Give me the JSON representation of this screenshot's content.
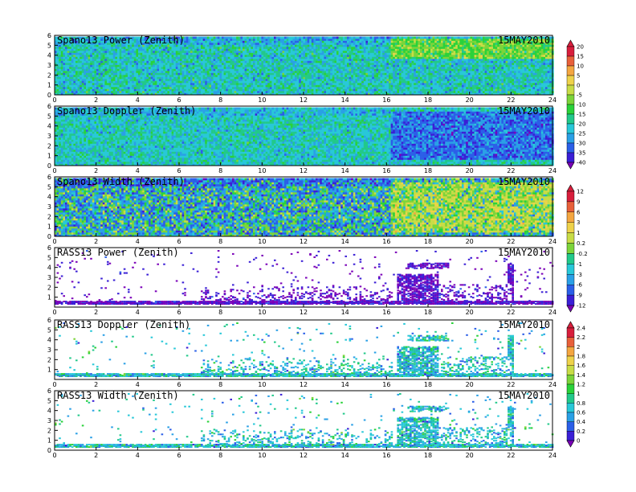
{
  "figure": {
    "x_ticks": [
      "0",
      "2",
      "4",
      "6",
      "8",
      "10",
      "12",
      "14",
      "16",
      "18",
      "20",
      "22",
      "24"
    ]
  },
  "chart_data": [
    {
      "type": "heatmap",
      "title": "Spano13 Power (Zenith)",
      "date": "15MAY2010",
      "xlim": [
        0,
        24
      ],
      "ylim": [
        0,
        6
      ],
      "y_ticks": [
        "0",
        "1",
        "2",
        "3",
        "4",
        "5",
        "6"
      ],
      "colorbar": "A",
      "kind": "full",
      "mean": -16,
      "upper_mean": -4,
      "upper_band": [
        3.8,
        5.8
      ],
      "noise": 7
    },
    {
      "type": "heatmap",
      "title": "Spano13 Doppler (Zenith)",
      "date": "15MAY2010",
      "xlim": [
        0,
        24
      ],
      "ylim": [
        0,
        6
      ],
      "y_ticks": [
        "0",
        "1",
        "2",
        "3",
        "4",
        "5",
        "6"
      ],
      "colorbar": "A",
      "kind": "full",
      "mean": -16,
      "upper_mean": -26,
      "upper_band": [
        0.8,
        5.5
      ],
      "noise": 6
    },
    {
      "type": "heatmap",
      "title": "Spano13 Width (Zenith)",
      "date": "15MAY2010",
      "xlim": [
        0,
        24
      ],
      "ylim": [
        0,
        6
      ],
      "y_ticks": [
        "0",
        "1",
        "2",
        "3",
        "4",
        "5",
        "6"
      ],
      "colorbar": "B",
      "kind": "full",
      "mean": -1,
      "upper_mean": 3,
      "upper_band": [
        0.5,
        5.5
      ],
      "noise": 4
    },
    {
      "type": "heatmap",
      "title": "RASS13 Power (Zenith)",
      "date": "15MAY2010",
      "xlim": [
        0,
        24
      ],
      "ylim": [
        0,
        6
      ],
      "y_ticks": [
        "1",
        "2",
        "3",
        "4",
        "5",
        "6"
      ],
      "colorbar": "B",
      "kind": "sparse",
      "mean": -9,
      "noise": 2.5
    },
    {
      "type": "heatmap",
      "title": "RASS13 Doppler (Zenith)",
      "date": "15MAY2010",
      "xlim": [
        0,
        24
      ],
      "ylim": [
        0,
        6
      ],
      "y_ticks": [
        "1",
        "2",
        "3",
        "4",
        "5",
        "6"
      ],
      "colorbar": "C",
      "kind": "sparse",
      "mean": 0.9,
      "noise": 0.35
    },
    {
      "type": "heatmap",
      "title": "RASS13 Width (Zenith)",
      "date": "15MAY2010",
      "xlim": [
        0,
        24
      ],
      "ylim": [
        0,
        6
      ],
      "y_ticks": [
        "0",
        "1",
        "2",
        "3",
        "4",
        "5",
        "6"
      ],
      "colorbar": "C",
      "kind": "sparse",
      "mean": 0.9,
      "noise": 0.35
    }
  ],
  "colorbars": {
    "A": {
      "labels": [
        "20",
        "15",
        "10",
        "5",
        "0",
        "-5",
        "-10",
        "-15",
        "-20",
        "-25",
        "-30",
        "-35",
        "-40"
      ],
      "values": [
        20,
        15,
        10,
        5,
        0,
        -5,
        -10,
        -15,
        -20,
        -25,
        -30,
        -35,
        -40
      ]
    },
    "B": {
      "labels": [
        "12",
        "9",
        "6",
        "3",
        "1",
        "0.2",
        "-0.2",
        "-1",
        "-3",
        "-6",
        "-9",
        "-12"
      ],
      "values": [
        12,
        9,
        6,
        3,
        1,
        0.2,
        -0.2,
        -1,
        -3,
        -6,
        -9,
        -12
      ]
    },
    "C": {
      "labels": [
        "2.4",
        "2.2",
        "2",
        "1.8",
        "1.6",
        "1.4",
        "1.2",
        "1",
        "0.8",
        "0.6",
        "0.4",
        "0.2",
        "0"
      ],
      "values": [
        2.4,
        2.2,
        2,
        1.8,
        1.6,
        1.4,
        1.2,
        1,
        0.8,
        0.6,
        0.4,
        0.2,
        0
      ]
    }
  },
  "palette": [
    "#7a00b8",
    "#3a1fd6",
    "#2b5fe8",
    "#2aa0e6",
    "#28c8d8",
    "#22c98a",
    "#2ad23a",
    "#7cd43a",
    "#c8dc46",
    "#eed24a",
    "#f4a640",
    "#e8603a",
    "#d81e3c"
  ]
}
